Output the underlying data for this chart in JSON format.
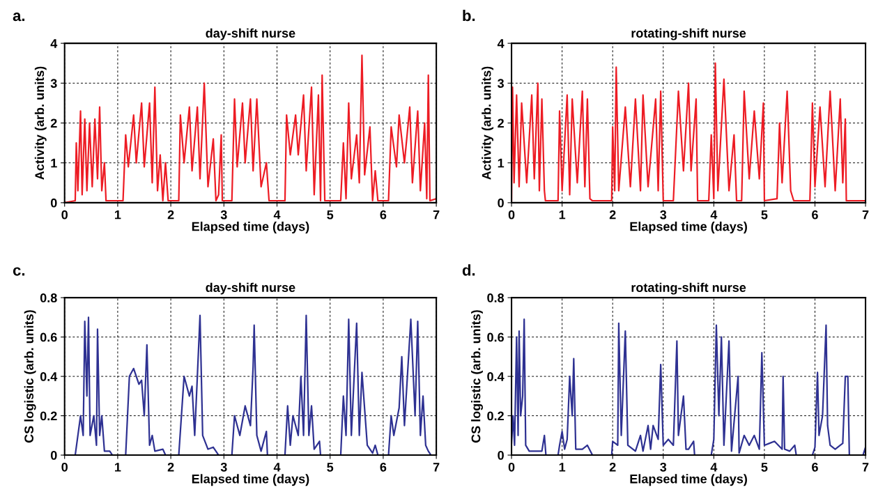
{
  "chart_data": [
    {
      "type": "line",
      "title": "day-shift nurse",
      "xlabel": "Elapsed time (days)",
      "ylabel": "Activity (arb. units)",
      "annotations": [
        "a."
      ],
      "xlim": [
        0,
        7
      ],
      "ylim": [
        0,
        4
      ],
      "xticks": [
        0,
        1,
        2,
        3,
        4,
        5,
        6,
        7
      ],
      "yticks": [
        0,
        1,
        2,
        3,
        4
      ],
      "grid": true,
      "line_style": "solid",
      "marker": "none",
      "series": [
        {
          "color": "#ed1c24",
          "x": [
            0,
            0.2,
            0.22,
            0.25,
            0.3,
            0.33,
            0.38,
            0.42,
            0.47,
            0.52,
            0.57,
            0.62,
            0.66,
            0.7,
            0.75,
            0.78,
            1.1,
            1.15,
            1.2,
            1.3,
            1.35,
            1.45,
            1.5,
            1.6,
            1.65,
            1.7,
            1.75,
            1.8,
            1.85,
            1.9,
            1.95,
            2.15,
            2.18,
            2.25,
            2.35,
            2.4,
            2.5,
            2.55,
            2.63,
            2.7,
            2.8,
            2.85,
            2.9,
            2.95,
            2.97,
            3.15,
            3.2,
            3.25,
            3.35,
            3.4,
            3.5,
            3.55,
            3.62,
            3.7,
            3.8,
            3.85,
            4.15,
            4.18,
            4.25,
            4.35,
            4.4,
            4.5,
            4.55,
            4.65,
            4.7,
            4.78,
            4.82,
            4.85,
            4.9,
            5.2,
            5.25,
            5.3,
            5.35,
            5.4,
            5.5,
            5.55,
            5.6,
            5.65,
            5.75,
            5.8,
            5.85,
            5.9,
            6.1,
            6.15,
            6.25,
            6.3,
            6.4,
            6.5,
            6.55,
            6.65,
            6.7,
            6.78,
            6.82,
            6.85,
            6.88,
            7.0
          ],
          "values": [
            0,
            0.05,
            1.5,
            0.3,
            2.3,
            0.2,
            2.1,
            0.3,
            2.0,
            0.4,
            2.1,
            0.6,
            2.4,
            0.3,
            1.0,
            0.05,
            0.05,
            1.7,
            0.9,
            2.2,
            1.0,
            2.5,
            0.9,
            2.5,
            0.5,
            2.9,
            0.3,
            1.2,
            0.05,
            1.0,
            0.05,
            0.05,
            2.2,
            1.0,
            2.4,
            0.8,
            2.4,
            0.6,
            3.0,
            0.4,
            1.6,
            0.05,
            0.2,
            1.7,
            0.05,
            0.05,
            2.6,
            0.9,
            2.5,
            1.0,
            2.6,
            0.8,
            2.6,
            0.4,
            1.0,
            0.05,
            0.05,
            2.2,
            1.2,
            2.2,
            1.2,
            2.7,
            0.8,
            2.9,
            0.2,
            2.7,
            0.05,
            3.2,
            0.05,
            0.05,
            1.5,
            0.1,
            2.5,
            0.6,
            1.7,
            0.5,
            3.7,
            0.7,
            1.9,
            0.05,
            0.8,
            0.05,
            0.05,
            1.9,
            0.9,
            2.2,
            1.0,
            2.4,
            0.5,
            2.3,
            0.3,
            2.0,
            0.1,
            3.2,
            0.05,
            0.1
          ]
        }
      ]
    },
    {
      "type": "line",
      "title": "rotating-shift nurse",
      "xlabel": "Elapsed time (days)",
      "ylabel": "Activity (arb. units)",
      "annotations": [
        "b."
      ],
      "xlim": [
        0,
        7
      ],
      "ylim": [
        0,
        4
      ],
      "xticks": [
        0,
        1,
        2,
        3,
        4,
        5,
        6,
        7
      ],
      "yticks": [
        0,
        1,
        2,
        3,
        4
      ],
      "grid": true,
      "line_style": "solid",
      "marker": "none",
      "series": [
        {
          "color": "#ed1c24",
          "x": [
            0,
            0.02,
            0.05,
            0.1,
            0.15,
            0.2,
            0.3,
            0.4,
            0.45,
            0.52,
            0.55,
            0.6,
            0.65,
            0.67,
            0.92,
            0.95,
            1.0,
            1.1,
            1.15,
            1.2,
            1.3,
            1.4,
            1.45,
            1.5,
            1.55,
            1.6,
            1.98,
            2.0,
            2.04,
            2.07,
            2.12,
            2.25,
            2.35,
            2.45,
            2.55,
            2.6,
            2.7,
            2.85,
            2.9,
            2.95,
            3.0,
            3.2,
            3.3,
            3.4,
            3.5,
            3.55,
            3.65,
            3.68,
            3.9,
            3.95,
            4.0,
            4.03,
            4.08,
            4.2,
            4.3,
            4.4,
            4.45,
            4.55,
            4.6,
            4.7,
            4.8,
            4.9,
            4.98,
            5.0,
            5.25,
            5.3,
            5.35,
            5.45,
            5.52,
            5.58,
            5.9,
            5.95,
            6.0,
            6.1,
            6.2,
            6.3,
            6.4,
            6.5,
            6.55,
            6.6,
            6.62,
            7.0
          ],
          "values": [
            0.05,
            2.9,
            0.5,
            2.7,
            0.4,
            2.5,
            0.5,
            2.7,
            0.6,
            3.0,
            0.3,
            2.6,
            0.3,
            0.05,
            0.05,
            2.3,
            0.3,
            2.7,
            0.2,
            2.6,
            0.5,
            2.8,
            0.4,
            2.6,
            0.1,
            0.05,
            0.05,
            1.9,
            0.3,
            3.4,
            0.3,
            2.4,
            0.4,
            2.6,
            0.3,
            2.7,
            0.4,
            2.6,
            0.3,
            2.8,
            0.05,
            0.05,
            2.8,
            0.8,
            3.0,
            0.8,
            2.6,
            0.05,
            0.05,
            1.7,
            0.1,
            3.5,
            0.3,
            3.1,
            0.3,
            1.7,
            0.05,
            0.05,
            2.8,
            0.6,
            2.3,
            0.6,
            2.5,
            0.05,
            0.1,
            2.0,
            0.5,
            2.8,
            0.3,
            0.05,
            0.05,
            2.5,
            0.4,
            2.4,
            0.4,
            2.8,
            0.3,
            2.6,
            0.5,
            2.1,
            0.05,
            0.05
          ]
        }
      ]
    },
    {
      "type": "line",
      "title": "day-shift nurse",
      "xlabel": "Elapsed time (days)",
      "ylabel": "CS logistic (arb. units)",
      "annotations": [
        "c."
      ],
      "xlim": [
        0,
        7
      ],
      "ylim": [
        0,
        0.8
      ],
      "xticks": [
        0,
        1,
        2,
        3,
        4,
        5,
        6,
        7
      ],
      "yticks": [
        0,
        {
          "value": 0.2,
          "label": "0.2"
        },
        {
          "value": 0.4,
          "label": "0.4"
        },
        {
          "value": 0.6,
          "label": "0.6"
        },
        {
          "value": 0.8,
          "label": "0.8"
        }
      ],
      "grid": true,
      "line_style": "solid",
      "marker": "none",
      "series": [
        {
          "color": "#2e3192",
          "x": [
            0,
            0.2,
            0.25,
            0.3,
            0.35,
            0.38,
            0.42,
            0.45,
            0.48,
            0.55,
            0.6,
            0.62,
            0.66,
            0.7,
            0.75,
            0.85,
            0.9,
            1.15,
            1.22,
            1.3,
            1.4,
            1.45,
            1.5,
            1.55,
            1.6,
            1.65,
            1.7,
            1.85,
            1.9,
            2.15,
            2.2,
            2.25,
            2.35,
            2.4,
            2.45,
            2.5,
            2.55,
            2.6,
            2.7,
            2.8,
            2.9,
            3.15,
            3.2,
            3.3,
            3.4,
            3.5,
            3.55,
            3.57,
            3.62,
            3.7,
            3.8,
            3.82,
            4.15,
            4.2,
            4.25,
            4.3,
            4.4,
            4.45,
            4.5,
            4.55,
            4.6,
            4.65,
            4.7,
            4.8,
            4.82,
            5.2,
            5.25,
            5.3,
            5.35,
            5.4,
            5.5,
            5.55,
            5.6,
            5.7,
            5.8,
            5.85,
            5.9,
            6.1,
            6.15,
            6.2,
            6.3,
            6.35,
            6.4,
            6.5,
            6.52,
            6.6,
            6.65,
            6.7,
            6.75,
            6.8,
            6.85,
            6.9,
            7.0
          ],
          "values": [
            0,
            0,
            0.1,
            0.2,
            0.1,
            0.68,
            0.3,
            0.7,
            0.1,
            0.2,
            0.05,
            0.64,
            0.1,
            0.2,
            0.02,
            0.02,
            0,
            0,
            0.4,
            0.44,
            0.36,
            0.38,
            0.2,
            0.56,
            0.05,
            0.1,
            0.02,
            0.03,
            0,
            0,
            0.2,
            0.4,
            0.3,
            0.35,
            0.1,
            0.4,
            0.71,
            0.1,
            0.03,
            0.04,
            0,
            0,
            0.2,
            0.1,
            0.25,
            0.15,
            0.45,
            0.66,
            0.1,
            0.02,
            0.12,
            0,
            0,
            0.25,
            0.05,
            0.2,
            0.1,
            0.4,
            0.1,
            0.71,
            0.1,
            0.25,
            0.03,
            0.07,
            0,
            0,
            0.3,
            0.1,
            0.69,
            0.1,
            0.67,
            0.1,
            0.42,
            0.05,
            0.01,
            0.05,
            0,
            0,
            0.2,
            0.1,
            0.24,
            0.5,
            0.15,
            0.6,
            0.69,
            0.2,
            0.68,
            0.1,
            0.3,
            0.05,
            0.02,
            0,
            0
          ]
        }
      ]
    },
    {
      "type": "line",
      "title": "rotating-shift nurse",
      "xlabel": "Elapsed time (days)",
      "ylabel": "CS logistic (arb. units)",
      "annotations": [
        "d."
      ],
      "xlim": [
        0,
        7
      ],
      "ylim": [
        0,
        0.8
      ],
      "xticks": [
        0,
        1,
        2,
        3,
        4,
        5,
        6,
        7
      ],
      "yticks": [
        0,
        {
          "value": 0.2,
          "label": "0.2"
        },
        {
          "value": 0.4,
          "label": "0.4"
        },
        {
          "value": 0.6,
          "label": "0.6"
        },
        {
          "value": 0.8,
          "label": "0.8"
        }
      ],
      "grid": true,
      "line_style": "solid",
      "marker": "none",
      "series": [
        {
          "color": "#2e3192",
          "x": [
            0,
            0.03,
            0.06,
            0.1,
            0.13,
            0.15,
            0.18,
            0.22,
            0.25,
            0.28,
            0.35,
            0.6,
            0.65,
            0.68,
            0.92,
            0.95,
            1.0,
            1.05,
            1.1,
            1.15,
            1.2,
            1.23,
            1.27,
            1.4,
            1.5,
            1.6,
            1.98,
            2.0,
            2.1,
            2.12,
            2.17,
            2.25,
            2.3,
            2.45,
            2.55,
            2.6,
            2.7,
            2.75,
            2.8,
            2.9,
            2.95,
            3.0,
            3.1,
            3.2,
            3.27,
            3.3,
            3.4,
            3.45,
            3.5,
            3.6,
            3.62,
            3.95,
            4.0,
            4.05,
            4.1,
            4.15,
            4.2,
            4.3,
            4.35,
            4.48,
            4.5,
            4.6,
            4.7,
            4.8,
            4.9,
            4.95,
            5.0,
            5.1,
            5.2,
            5.35,
            5.37,
            5.4,
            5.5,
            5.6,
            5.63,
            5.95,
            6.0,
            6.05,
            6.08,
            6.15,
            6.22,
            6.25,
            6.3,
            6.4,
            6.5,
            6.55,
            6.6,
            6.65,
            6.68,
            6.95,
            7.0
          ],
          "values": [
            0.06,
            0.2,
            0.05,
            0.6,
            0.1,
            0.63,
            0.2,
            0.3,
            0.69,
            0.05,
            0.02,
            0.02,
            0.1,
            0,
            0,
            0.05,
            0.12,
            0.03,
            0.08,
            0.4,
            0.2,
            0.49,
            0.03,
            0.03,
            0.05,
            0,
            0,
            0.07,
            0.05,
            0.67,
            0.1,
            0.63,
            0.05,
            0.02,
            0.1,
            0.02,
            0.15,
            0.03,
            0.15,
            0.08,
            0.46,
            0.05,
            0.08,
            0.05,
            0.58,
            0.1,
            0.3,
            0.03,
            0.03,
            0.07,
            0,
            0,
            0.08,
            0.66,
            0.2,
            0.6,
            0.05,
            0.58,
            0.02,
            0.4,
            0.01,
            0.1,
            0.05,
            0.1,
            0.03,
            0.52,
            0.05,
            0.06,
            0.07,
            0.03,
            0.4,
            0.03,
            0.02,
            0.05,
            0,
            0,
            0.04,
            0.42,
            0.1,
            0.2,
            0.66,
            0.15,
            0.05,
            0.03,
            0.05,
            0.06,
            0.4,
            0.4,
            0,
            0,
            0.04
          ]
        }
      ]
    }
  ]
}
